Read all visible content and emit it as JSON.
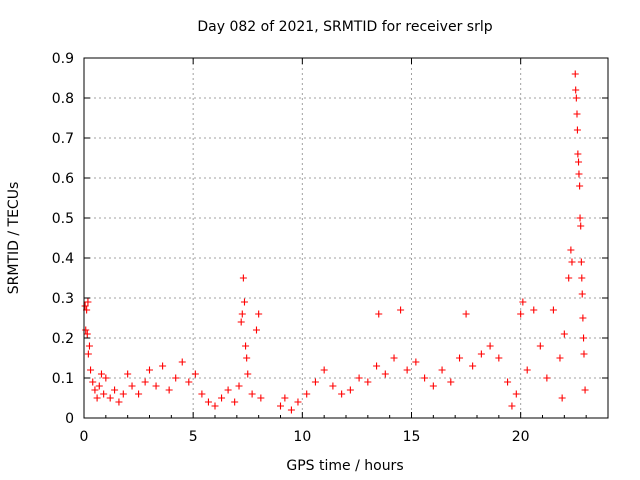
{
  "chart_data": {
    "type": "scatter",
    "title": "Day 082 of 2021, SRMTID for receiver srlp",
    "xlabel": "GPS time / hours",
    "ylabel": "SRMTID / TECUs",
    "xlim": [
      0,
      24
    ],
    "ylim": [
      0,
      0.9
    ],
    "x_ticks": [
      0,
      5,
      10,
      15,
      20
    ],
    "x_tick_labels": [
      "0",
      "5",
      "10",
      "15",
      "20"
    ],
    "y_ticks": [
      0,
      0.1,
      0.2,
      0.3,
      0.4,
      0.5,
      0.6,
      0.7,
      0.8,
      0.9
    ],
    "y_tick_labels": [
      "0",
      "0.1",
      "0.2",
      "0.3",
      "0.4",
      "0.5",
      "0.6",
      "0.7",
      "0.8",
      "0.9"
    ],
    "grid": true,
    "marker": "+",
    "color": "#ff0000",
    "series": [
      {
        "name": "SRMTID",
        "points": [
          [
            0.05,
            0.28
          ],
          [
            0.08,
            0.22
          ],
          [
            0.12,
            0.27
          ],
          [
            0.15,
            0.21
          ],
          [
            0.18,
            0.29
          ],
          [
            0.2,
            0.16
          ],
          [
            0.25,
            0.18
          ],
          [
            0.3,
            0.12
          ],
          [
            0.4,
            0.09
          ],
          [
            0.5,
            0.07
          ],
          [
            0.6,
            0.05
          ],
          [
            0.7,
            0.08
          ],
          [
            0.8,
            0.11
          ],
          [
            0.9,
            0.06
          ],
          [
            1.0,
            0.1
          ],
          [
            1.2,
            0.05
          ],
          [
            1.4,
            0.07
          ],
          [
            1.6,
            0.04
          ],
          [
            1.8,
            0.06
          ],
          [
            2.0,
            0.11
          ],
          [
            2.2,
            0.08
          ],
          [
            2.5,
            0.06
          ],
          [
            2.8,
            0.09
          ],
          [
            3.0,
            0.12
          ],
          [
            3.3,
            0.08
          ],
          [
            3.6,
            0.13
          ],
          [
            3.9,
            0.07
          ],
          [
            4.2,
            0.1
          ],
          [
            4.5,
            0.14
          ],
          [
            4.8,
            0.09
          ],
          [
            5.1,
            0.11
          ],
          [
            5.4,
            0.06
          ],
          [
            5.7,
            0.04
          ],
          [
            6.0,
            0.03
          ],
          [
            6.3,
            0.05
          ],
          [
            6.6,
            0.07
          ],
          [
            6.9,
            0.04
          ],
          [
            7.1,
            0.08
          ],
          [
            7.2,
            0.24
          ],
          [
            7.25,
            0.26
          ],
          [
            7.3,
            0.35
          ],
          [
            7.35,
            0.29
          ],
          [
            7.4,
            0.18
          ],
          [
            7.45,
            0.15
          ],
          [
            7.5,
            0.11
          ],
          [
            7.7,
            0.06
          ],
          [
            7.9,
            0.22
          ],
          [
            8.0,
            0.26
          ],
          [
            8.1,
            0.05
          ],
          [
            9.0,
            0.03
          ],
          [
            9.2,
            0.05
          ],
          [
            9.5,
            0.02
          ],
          [
            9.8,
            0.04
          ],
          [
            10.2,
            0.06
          ],
          [
            10.6,
            0.09
          ],
          [
            11.0,
            0.12
          ],
          [
            11.4,
            0.08
          ],
          [
            11.8,
            0.06
          ],
          [
            12.2,
            0.07
          ],
          [
            12.6,
            0.1
          ],
          [
            13.0,
            0.09
          ],
          [
            13.4,
            0.13
          ],
          [
            13.5,
            0.26
          ],
          [
            13.8,
            0.11
          ],
          [
            14.2,
            0.15
          ],
          [
            14.5,
            0.27
          ],
          [
            14.8,
            0.12
          ],
          [
            15.2,
            0.14
          ],
          [
            15.6,
            0.1
          ],
          [
            16.0,
            0.08
          ],
          [
            16.4,
            0.12
          ],
          [
            16.8,
            0.09
          ],
          [
            17.2,
            0.15
          ],
          [
            17.5,
            0.26
          ],
          [
            17.8,
            0.13
          ],
          [
            18.2,
            0.16
          ],
          [
            18.6,
            0.18
          ],
          [
            19.0,
            0.15
          ],
          [
            19.4,
            0.09
          ],
          [
            19.6,
            0.03
          ],
          [
            19.8,
            0.06
          ],
          [
            20.0,
            0.26
          ],
          [
            20.1,
            0.29
          ],
          [
            20.3,
            0.12
          ],
          [
            20.6,
            0.27
          ],
          [
            20.9,
            0.18
          ],
          [
            21.2,
            0.1
          ],
          [
            21.5,
            0.27
          ],
          [
            21.8,
            0.15
          ],
          [
            21.9,
            0.05
          ],
          [
            22.0,
            0.21
          ],
          [
            22.2,
            0.35
          ],
          [
            22.3,
            0.42
          ],
          [
            22.35,
            0.39
          ],
          [
            22.5,
            0.86
          ],
          [
            22.52,
            0.82
          ],
          [
            22.55,
            0.8
          ],
          [
            22.58,
            0.76
          ],
          [
            22.6,
            0.72
          ],
          [
            22.62,
            0.66
          ],
          [
            22.65,
            0.64
          ],
          [
            22.67,
            0.61
          ],
          [
            22.7,
            0.58
          ],
          [
            22.72,
            0.5
          ],
          [
            22.75,
            0.48
          ],
          [
            22.78,
            0.39
          ],
          [
            22.8,
            0.35
          ],
          [
            22.82,
            0.31
          ],
          [
            22.85,
            0.25
          ],
          [
            22.88,
            0.2
          ],
          [
            22.9,
            0.16
          ],
          [
            22.95,
            0.07
          ]
        ]
      }
    ]
  }
}
